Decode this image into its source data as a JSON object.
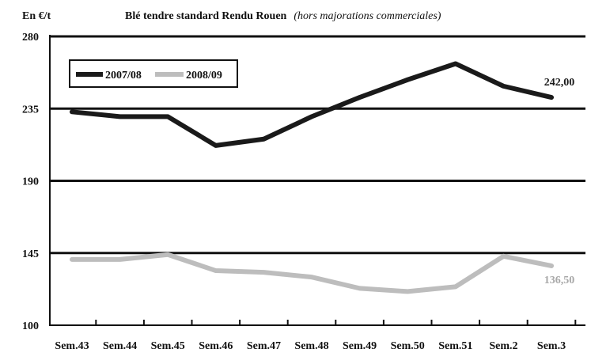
{
  "chart_data": {
    "type": "line",
    "unit_label": "En €/t",
    "title": "Blé tendre standard Rendu Rouen",
    "subtitle": "(hors majorations commerciales)",
    "categories": [
      "Sem.43",
      "Sem.44",
      "Sem.45",
      "Sem.46",
      "Sem.47",
      "Sem.48",
      "Sem.49",
      "Sem.50",
      "Sem.51",
      "Sem.2",
      "Sem.3"
    ],
    "ylim": [
      100,
      280
    ],
    "yticks": [
      100,
      145,
      190,
      235,
      280
    ],
    "grid": "horizontal",
    "legend_position": "top-left",
    "series": [
      {
        "name": "2007/08",
        "color": "#1a1a1a",
        "values": [
          233,
          230,
          230,
          212,
          216,
          230,
          242,
          253,
          263,
          249,
          242
        ],
        "end_label": "242,00",
        "end_label_color": "#1a1a1a"
      },
      {
        "name": "2008/09",
        "color": "#bdbdbd",
        "values": [
          141,
          141,
          144,
          134,
          133,
          130,
          123,
          121,
          124,
          143,
          137
        ],
        "end_label": "136,50",
        "end_label_color": "#a8a8a8"
      }
    ]
  }
}
